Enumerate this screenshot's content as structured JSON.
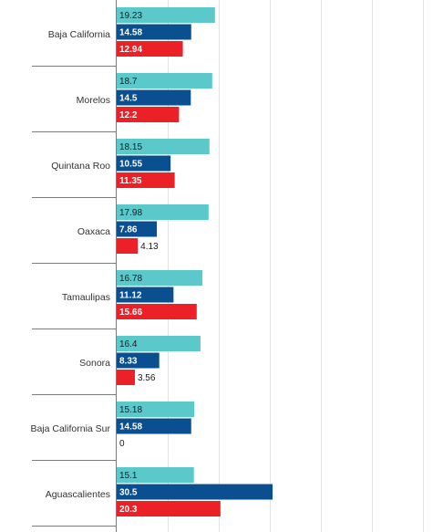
{
  "chart_data": {
    "type": "bar",
    "orientation": "horizontal",
    "categories": [
      "Baja California",
      "Morelos",
      "Quintana Roo",
      "Oaxaca",
      "Tamaulipas",
      "Sonora",
      "Baja California Sur",
      "Aguascalientes"
    ],
    "series": [
      {
        "color": "#5bc8cc",
        "values": [
          19.23,
          18.7,
          18.15,
          17.98,
          16.78,
          16.4,
          15.18,
          15.1
        ]
      },
      {
        "color": "#0a4f8f",
        "values": [
          14.58,
          14.5,
          10.55,
          7.86,
          11.12,
          8.33,
          14.58,
          30.5
        ]
      },
      {
        "color": "#ec2027",
        "values": [
          12.94,
          12.2,
          11.35,
          4.13,
          15.66,
          3.56,
          0,
          20.3
        ]
      }
    ],
    "data_labels": [
      [
        "19.23",
        "14.58",
        "12.94"
      ],
      [
        "18.7",
        "14.5",
        "12.2"
      ],
      [
        "18.15",
        "10.55",
        "11.35"
      ],
      [
        "17.98",
        "7.86",
        "4.13"
      ],
      [
        "16.78",
        "11.12",
        "15.66"
      ],
      [
        "16.4",
        "8.33",
        "3.56"
      ],
      [
        "15.18",
        "14.58",
        "0"
      ],
      [
        "15.1",
        "30.5",
        "20.3"
      ]
    ],
    "xlim": [
      0,
      60
    ],
    "grid": true,
    "legend": "none",
    "title": "",
    "xlabel": "",
    "ylabel": ""
  }
}
